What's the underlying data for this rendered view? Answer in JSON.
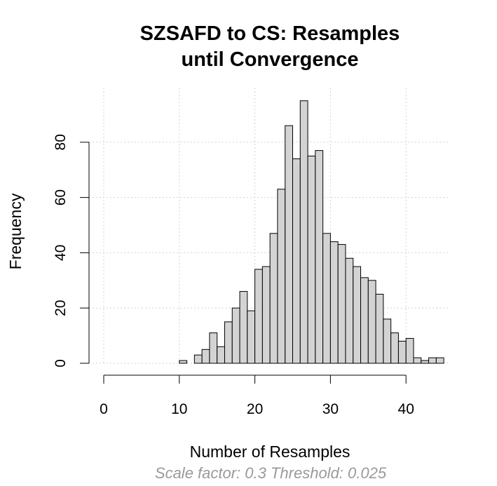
{
  "chart_data": {
    "type": "bar",
    "title_line1": "SZSAFD to CS: Resamples",
    "title_line2": "until Convergence",
    "xlabel": "Number of Resamples",
    "ylabel": "Frequency",
    "subtitle": "Scale factor: 0.3 Threshold: 0.025",
    "bin_width": 1,
    "bins_start": 0,
    "values": [
      0,
      0,
      0,
      0,
      0,
      0,
      0,
      0,
      0,
      0,
      1,
      0,
      3,
      5,
      11,
      6,
      15,
      20,
      26,
      19,
      34,
      35,
      47,
      63,
      86,
      74,
      95,
      75,
      77,
      47,
      44,
      43,
      38,
      35,
      31,
      30,
      25,
      16,
      11,
      8,
      9,
      2,
      1,
      2,
      2
    ],
    "xlim": [
      0,
      45
    ],
    "ylim": [
      0,
      100
    ],
    "x_ticks": [
      0,
      10,
      20,
      30,
      40
    ],
    "y_ticks": [
      0,
      20,
      40,
      60,
      80
    ],
    "grid": true
  }
}
